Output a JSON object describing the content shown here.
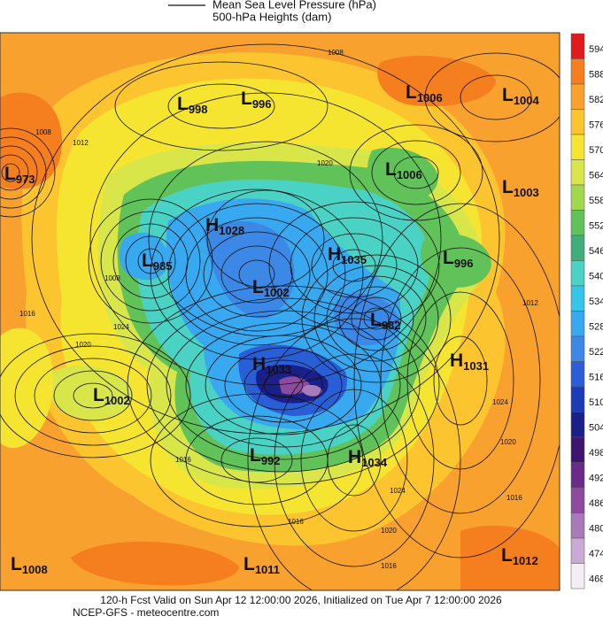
{
  "legend": {
    "lines": [
      "Mean Sea Level Pressure (hPa)",
      "500-hPa Heights (dam)"
    ]
  },
  "colorbar": {
    "levels": [
      594,
      588,
      582,
      576,
      570,
      564,
      558,
      552,
      546,
      540,
      534,
      528,
      522,
      516,
      510,
      504,
      498,
      492,
      486,
      480,
      474,
      468
    ],
    "colors": [
      "#e31a1c",
      "#f57e1f",
      "#f8a12e",
      "#fcc530",
      "#f6e530",
      "#d8e64a",
      "#a2d84e",
      "#62c25a",
      "#3fae78",
      "#4ad2c4",
      "#34c6ea",
      "#38a8f0",
      "#3b88e6",
      "#2a5ed6",
      "#1c3bb6",
      "#1b1f88",
      "#3d1470",
      "#6a2a8a",
      "#8c4aa0",
      "#a87ab8",
      "#c9a9d5",
      "#f2eef4"
    ]
  },
  "centers": [
    {
      "type": "L",
      "value": 998
    },
    {
      "type": "L",
      "value": 996
    },
    {
      "type": "L",
      "value": 1006
    },
    {
      "type": "L",
      "value": 1004
    },
    {
      "type": "L",
      "value": 973
    },
    {
      "type": "L",
      "value": 1006
    },
    {
      "type": "L",
      "value": 1003
    },
    {
      "type": "H",
      "value": 1028
    },
    {
      "type": "H",
      "value": 1035
    },
    {
      "type": "L",
      "value": 985
    },
    {
      "type": "L",
      "value": 996
    },
    {
      "type": "L",
      "value": 1002
    },
    {
      "type": "L",
      "value": 982
    },
    {
      "type": "H",
      "value": 1031
    },
    {
      "type": "H",
      "value": 1033
    },
    {
      "type": "L",
      "value": 1002
    },
    {
      "type": "L",
      "value": 992
    },
    {
      "type": "H",
      "value": 1034
    },
    {
      "type": "L",
      "value": 1008
    },
    {
      "type": "L",
      "value": 1011
    },
    {
      "type": "L",
      "value": 1012
    }
  ],
  "isobar_labels": [
    1008,
    1012,
    1024,
    1020,
    1016,
    1008,
    1016,
    1024,
    1020,
    1016,
    1024,
    1020,
    1016,
    1016,
    1012,
    1020,
    1008
  ],
  "footer": [
    "120-h Fcst Valid on Sun Apr 12 12:00:00 2026, Initialized on Tue Apr  7 12:00:00 2026",
    "NCEP-GFS  -  meteocentre.com"
  ]
}
